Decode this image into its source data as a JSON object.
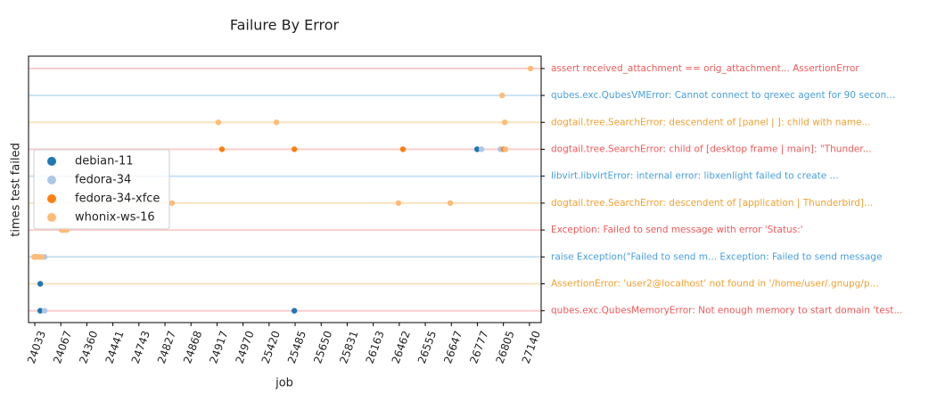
{
  "chart_data": {
    "type": "strip",
    "title": "Failure By Error",
    "x_label": "job",
    "y_label": "times test failed",
    "xlim": [
      -0.24,
      19.45
    ],
    "xticks": [
      {
        "value": 0,
        "label": "24033"
      },
      {
        "value": 1,
        "label": "24067"
      },
      {
        "value": 2,
        "label": "24360"
      },
      {
        "value": 3,
        "label": "24441"
      },
      {
        "value": 4,
        "label": "24743"
      },
      {
        "value": 5,
        "label": "24827"
      },
      {
        "value": 6,
        "label": "24868"
      },
      {
        "value": 7,
        "label": "24917"
      },
      {
        "value": 8,
        "label": "24970"
      },
      {
        "value": 9,
        "label": "25420"
      },
      {
        "value": 10,
        "label": "25485"
      },
      {
        "value": 11,
        "label": "25650"
      },
      {
        "value": 12,
        "label": "25831"
      },
      {
        "value": 13,
        "label": "26163"
      },
      {
        "value": 14,
        "label": "26462"
      },
      {
        "value": 15,
        "label": "26555"
      },
      {
        "value": 16,
        "label": "26647"
      },
      {
        "value": 17,
        "label": "26777"
      },
      {
        "value": 18,
        "label": "26805"
      },
      {
        "value": 19,
        "label": "27140"
      }
    ],
    "ylim": [
      -0.46,
      9.44
    ],
    "yticks": [
      {
        "value": 0,
        "label": "assert received_attachment == orig_attachment... AssertionError"
      },
      {
        "value": 1,
        "label": "qubes.exc.QubesVMError: Cannot connect to qrexec agent for 90 secon..."
      },
      {
        "value": 2,
        "label": "dogtail.tree.SearchError: descendent of [panel | ]: child with name..."
      },
      {
        "value": 3,
        "label": "dogtail.tree.SearchError: child of [desktop frame | main]: \"Thunder..."
      },
      {
        "value": 4,
        "label": "libvirt.libvirtError: internal error: libxenlight failed to create ..."
      },
      {
        "value": 5,
        "label": "dogtail.tree.SearchError: descendent of [application | Thunderbird]..."
      },
      {
        "value": 6,
        "label": "Exception: Failed to send message with error 'Status:'"
      },
      {
        "value": 7,
        "label": "raise Exception(\"Failed to send m... Exception: Failed to send message"
      },
      {
        "value": 8,
        "label": "AssertionError: 'user2@localhost' not found in '/home/user/.gnupg/p..."
      },
      {
        "value": 9,
        "label": "qubes.exc.QubesMemoryError: Not enough memory to start domain 'test..."
      }
    ],
    "row_colors": [
      "#f05a5a",
      "#4a9fdb",
      "#f0a030",
      "#f05a5a",
      "#4a9fdb",
      "#f0a030",
      "#f05a5a",
      "#4a9fdb",
      "#f0a030",
      "#f05a5a"
    ],
    "legend": "center left",
    "series": [
      {
        "name": "debian-11",
        "color": "#1f77b4",
        "x": [
          16.99,
          0.03,
          0.21,
          0.21,
          9.97
        ],
        "values": [
          3,
          7,
          8,
          9,
          9
        ]
      },
      {
        "name": "fedora-34",
        "color": "#aec7e8",
        "x": [
          17.16,
          17.88,
          0.38,
          0.38
        ],
        "values": [
          3,
          3,
          7,
          9
        ]
      },
      {
        "name": "fedora-34-xfce",
        "color": "#ff7f0e",
        "x": [
          7.19,
          9.97,
          14.14,
          18.01
        ],
        "values": [
          3,
          3,
          3,
          3
        ]
      },
      {
        "name": "whonix-ws-16",
        "color": "#ffbb78",
        "x": [
          19.04,
          17.95,
          7.05,
          9.28,
          18.05,
          18.08,
          5.27,
          13.97,
          15.96,
          1.03,
          1.13,
          1.23,
          -0.03,
          0.07,
          0.17,
          0.27
        ],
        "values": [
          0,
          1,
          2,
          2,
          2,
          3,
          5,
          5,
          5,
          6,
          6,
          6,
          7,
          7,
          7,
          7
        ]
      }
    ]
  }
}
